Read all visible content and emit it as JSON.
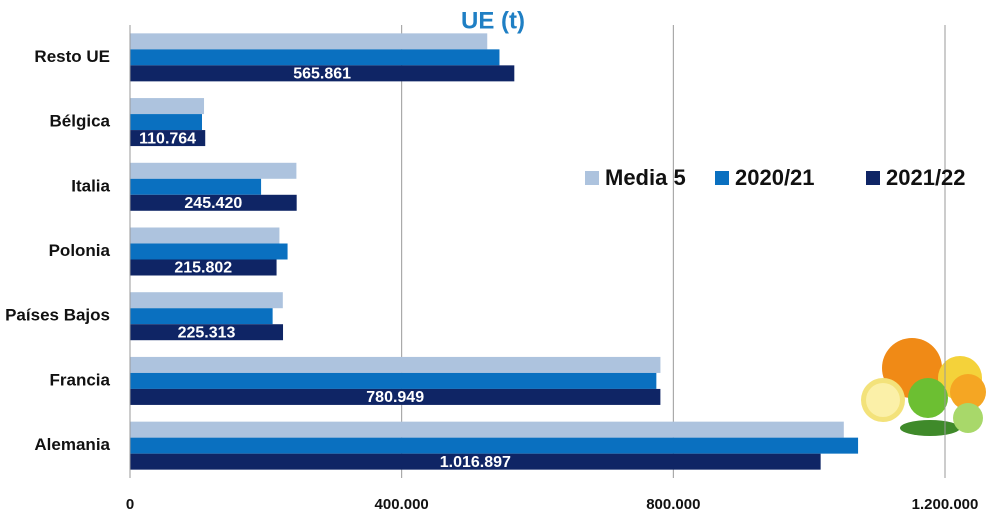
{
  "chart_data": {
    "type": "hbar",
    "title": "UE  (t)",
    "categories": [
      "Resto UE",
      "Bélgica",
      "Italia",
      "Polonia",
      "Países Bajos",
      "Francia",
      "Alemania"
    ],
    "series": [
      {
        "name": "Media 5",
        "color": "#adc3de",
        "values": [
          526000,
          109000,
          245000,
          220000,
          225000,
          781000,
          1051000
        ]
      },
      {
        "name": "2020/21",
        "color": "#0a70c0",
        "values": [
          544000,
          106000,
          193000,
          232000,
          210000,
          775000,
          1072000
        ]
      },
      {
        "name": "2021/22",
        "color": "#0f2565",
        "values": [
          565861,
          110764,
          245420,
          215802,
          225313,
          780949,
          1016897
        ],
        "value_labels": [
          "565.861",
          "110.764",
          "245.420",
          "215.802",
          "225.313",
          "780.949",
          "1.016.897"
        ]
      }
    ],
    "xlim": [
      0,
      1200000
    ],
    "xticks": [
      0,
      {
        "value": 400000,
        "label": "400.000"
      },
      {
        "value": 800000,
        "label": "800.000"
      },
      {
        "value": 1200000,
        "label": "1.200.000"
      }
    ],
    "grid": true,
    "legend": "right"
  }
}
